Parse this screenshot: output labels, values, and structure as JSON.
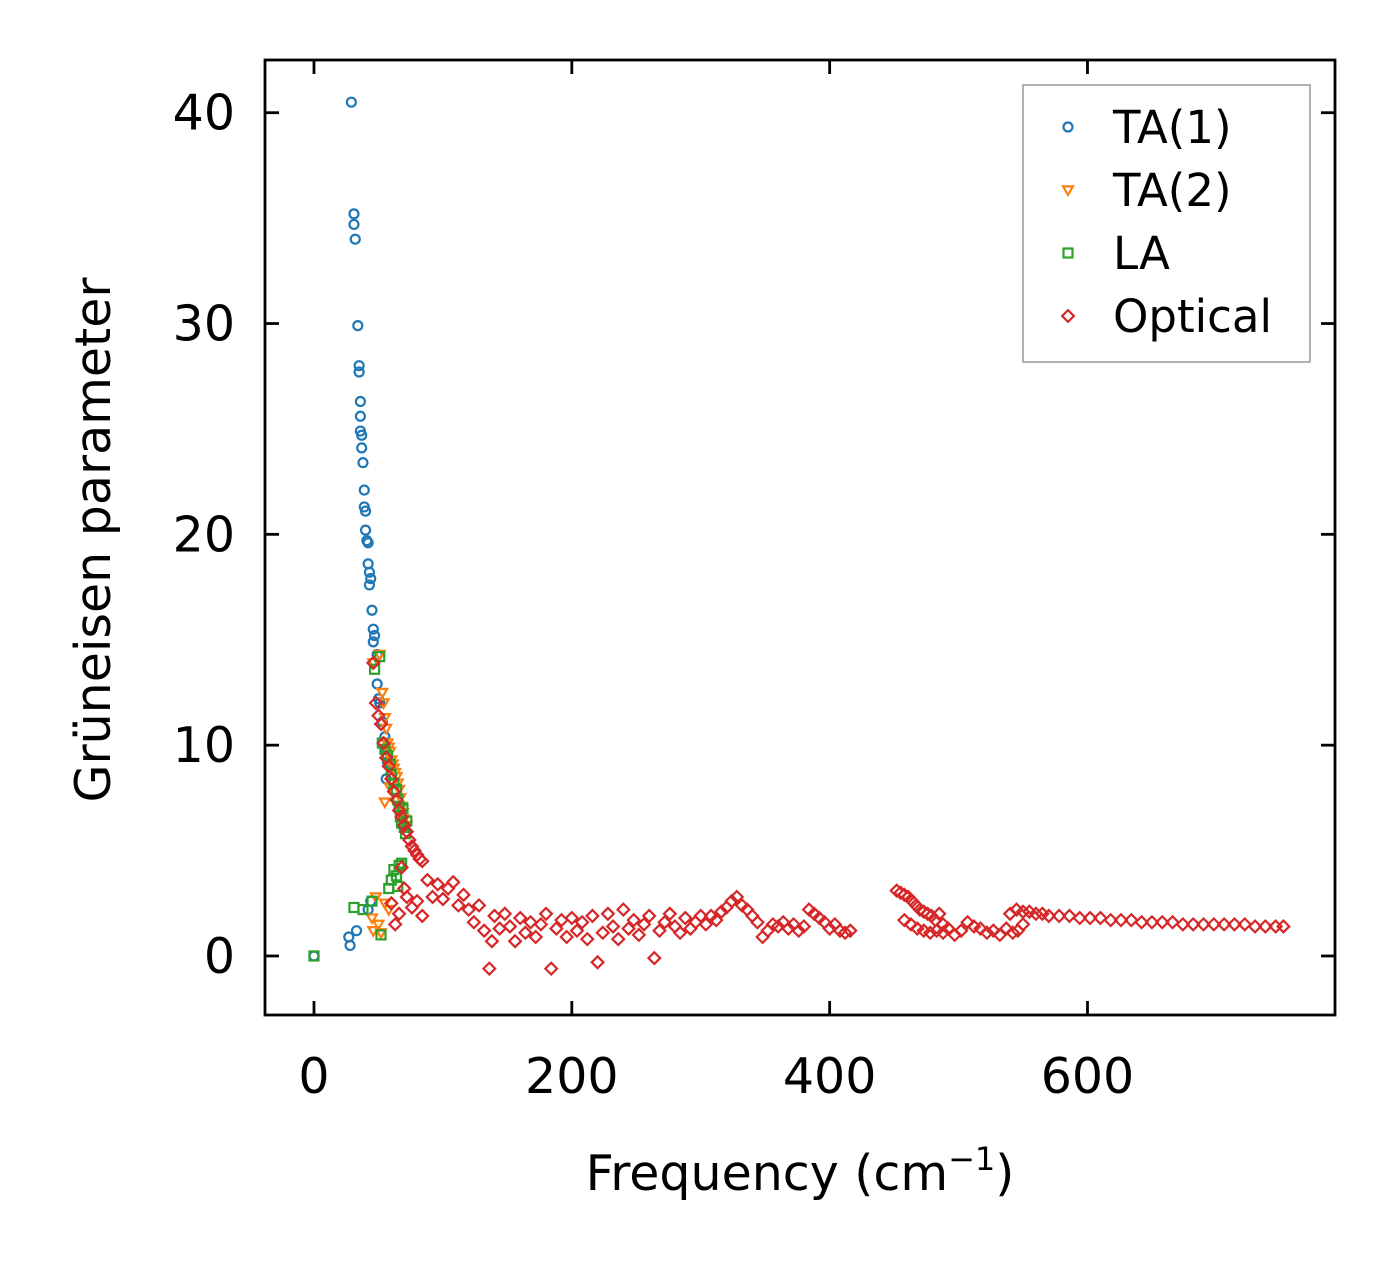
{
  "chart_data": {
    "type": "scatter",
    "title": "",
    "xlabel": "Frequency (cm",
    "xlabel_sup": "−1",
    "xlabel_end": ")",
    "ylabel": "Grüneisen parameter",
    "xlim": [
      -38,
      792
    ],
    "ylim": [
      -2.8,
      42.5
    ],
    "xticks": [
      0,
      200,
      400,
      600
    ],
    "xtick_labels": [
      "0",
      "200",
      "400",
      "600"
    ],
    "yticks": [
      0,
      10,
      20,
      30,
      40
    ],
    "ytick_labels": [
      "0",
      "10",
      "20",
      "30",
      "40"
    ],
    "legend_position": "top-right",
    "series": [
      {
        "name": "TA(1)",
        "marker": "circle",
        "color": "#1f77b4",
        "points": [
          [
            0,
            0
          ],
          [
            27,
            0.9
          ],
          [
            28,
            0.5
          ],
          [
            33,
            1.2
          ],
          [
            42,
            2.2
          ],
          [
            44,
            2.6
          ],
          [
            29,
            40.5
          ],
          [
            31,
            35.2
          ],
          [
            31,
            34.7
          ],
          [
            32,
            34
          ],
          [
            34,
            29.9
          ],
          [
            35,
            28
          ],
          [
            35,
            27.7
          ],
          [
            36,
            26.3
          ],
          [
            36,
            25.6
          ],
          [
            36,
            24.9
          ],
          [
            37,
            24.7
          ],
          [
            37,
            24.1
          ],
          [
            38,
            23.4
          ],
          [
            39,
            22.1
          ],
          [
            39,
            21.3
          ],
          [
            40,
            21.1
          ],
          [
            40,
            20.2
          ],
          [
            41,
            19.7
          ],
          [
            42,
            19.6
          ],
          [
            42,
            18.6
          ],
          [
            43,
            18.2
          ],
          [
            44,
            17.9
          ],
          [
            43,
            17.6
          ],
          [
            45,
            16.4
          ],
          [
            46,
            15.5
          ],
          [
            47,
            15.2
          ],
          [
            46,
            14.9
          ],
          [
            49,
            14.3
          ],
          [
            49,
            12.9
          ],
          [
            50,
            12.2
          ],
          [
            51,
            12
          ],
          [
            53,
            11.1
          ],
          [
            55,
            10.4
          ],
          [
            56,
            9.8
          ],
          [
            57,
            9.2
          ],
          [
            59,
            9
          ],
          [
            56,
            8.4
          ]
        ]
      },
      {
        "name": "TA(2)",
        "marker": "triangle-down",
        "color": "#ff7f0e",
        "points": [
          [
            45,
            1.8
          ],
          [
            48,
            2.8
          ],
          [
            46,
            1.2
          ],
          [
            50,
            1.5
          ],
          [
            52,
            1.1
          ],
          [
            55,
            2.5
          ],
          [
            58,
            2.2
          ],
          [
            46,
            13.9
          ],
          [
            51,
            14.3
          ],
          [
            53,
            12.5
          ],
          [
            54,
            12
          ],
          [
            55,
            11.3
          ],
          [
            56,
            10.8
          ],
          [
            57,
            10.1
          ],
          [
            58,
            9.9
          ],
          [
            59,
            9.7
          ],
          [
            60,
            9.3
          ],
          [
            61,
            9.1
          ],
          [
            62,
            8.9
          ],
          [
            63,
            8.7
          ],
          [
            64,
            8.5
          ],
          [
            65,
            8.2
          ],
          [
            66,
            7.9
          ],
          [
            67,
            7.5
          ],
          [
            68,
            7.1
          ],
          [
            69,
            6.8
          ],
          [
            70,
            6.5
          ],
          [
            72,
            6.2
          ],
          [
            55,
            7.3
          ],
          [
            59,
            8
          ]
        ]
      },
      {
        "name": "LA",
        "marker": "square",
        "color": "#2ca02c",
        "points": [
          [
            0,
            0
          ],
          [
            31,
            2.3
          ],
          [
            38,
            2.2
          ],
          [
            45,
            2.6
          ],
          [
            52,
            1
          ],
          [
            58,
            3.2
          ],
          [
            60,
            3.6
          ],
          [
            62,
            4.1
          ],
          [
            64,
            3.8
          ],
          [
            66,
            4.3
          ],
          [
            68,
            4.4
          ],
          [
            65,
            3.3
          ],
          [
            47,
            13.6
          ],
          [
            51,
            14.2
          ],
          [
            53,
            10.1
          ],
          [
            55,
            9.8
          ],
          [
            57,
            9.5
          ],
          [
            59,
            9.1
          ],
          [
            60,
            8.6
          ],
          [
            62,
            8.2
          ],
          [
            64,
            7.9
          ],
          [
            65,
            7.4
          ],
          [
            66,
            7.1
          ],
          [
            67,
            6.6
          ],
          [
            68,
            6.3
          ],
          [
            70,
            6.1
          ],
          [
            71,
            5.8
          ],
          [
            72,
            6.4
          ],
          [
            69,
            7
          ]
        ]
      },
      {
        "name": "Optical",
        "marker": "diamond",
        "color": "#d62728",
        "points": [
          [
            46,
            13.9
          ],
          [
            48,
            12
          ],
          [
            50,
            11.4
          ],
          [
            52,
            11
          ],
          [
            54,
            10.1
          ],
          [
            56,
            9.4
          ],
          [
            58,
            9
          ],
          [
            60,
            8.4
          ],
          [
            62,
            7.8
          ],
          [
            64,
            7.4
          ],
          [
            66,
            6.9
          ],
          [
            68,
            6.6
          ],
          [
            70,
            6.2
          ],
          [
            72,
            5.9
          ],
          [
            74,
            5.5
          ],
          [
            76,
            5.2
          ],
          [
            78,
            5
          ],
          [
            80,
            4.8
          ],
          [
            82,
            4.6
          ],
          [
            84,
            4.5
          ],
          [
            60,
            2.5
          ],
          [
            63,
            1.5
          ],
          [
            66,
            2
          ],
          [
            68,
            4.2
          ],
          [
            70,
            3.2
          ],
          [
            72,
            2.8
          ],
          [
            76,
            2.3
          ],
          [
            80,
            2.6
          ],
          [
            84,
            1.9
          ],
          [
            88,
            3.6
          ],
          [
            92,
            2.8
          ],
          [
            96,
            3.4
          ],
          [
            100,
            2.7
          ],
          [
            104,
            3.2
          ],
          [
            108,
            3.5
          ],
          [
            112,
            2.4
          ],
          [
            116,
            2.9
          ],
          [
            120,
            2.2
          ],
          [
            124,
            1.6
          ],
          [
            128,
            2.4
          ],
          [
            132,
            1.2
          ],
          [
            136,
            -0.6
          ],
          [
            138,
            0.7
          ],
          [
            140,
            1.9
          ],
          [
            144,
            1.3
          ],
          [
            148,
            2
          ],
          [
            152,
            1.4
          ],
          [
            156,
            0.7
          ],
          [
            160,
            1.8
          ],
          [
            164,
            1.1
          ],
          [
            168,
            1.6
          ],
          [
            172,
            0.9
          ],
          [
            176,
            1.5
          ],
          [
            180,
            2
          ],
          [
            184,
            -0.6
          ],
          [
            188,
            1.3
          ],
          [
            192,
            1.7
          ],
          [
            196,
            0.9
          ],
          [
            200,
            1.8
          ],
          [
            204,
            1.2
          ],
          [
            208,
            1.6
          ],
          [
            212,
            0.8
          ],
          [
            216,
            1.9
          ],
          [
            220,
            -0.3
          ],
          [
            224,
            1.1
          ],
          [
            228,
            2
          ],
          [
            232,
            1.4
          ],
          [
            236,
            0.8
          ],
          [
            240,
            2.2
          ],
          [
            244,
            1.3
          ],
          [
            248,
            1.7
          ],
          [
            252,
            1
          ],
          [
            256,
            1.5
          ],
          [
            260,
            1.9
          ],
          [
            264,
            -0.1
          ],
          [
            268,
            1.2
          ],
          [
            272,
            1.6
          ],
          [
            276,
            2
          ],
          [
            280,
            1.4
          ],
          [
            284,
            1.1
          ],
          [
            288,
            1.8
          ],
          [
            292,
            1.3
          ],
          [
            296,
            1.6
          ],
          [
            300,
            1.9
          ],
          [
            304,
            1.5
          ],
          [
            308,
            1.9
          ],
          [
            312,
            1.7
          ],
          [
            316,
            2.1
          ],
          [
            320,
            2.3
          ],
          [
            324,
            2.6
          ],
          [
            328,
            2.8
          ],
          [
            332,
            2.4
          ],
          [
            336,
            2.2
          ],
          [
            340,
            1.9
          ],
          [
            344,
            1.6
          ],
          [
            348,
            0.9
          ],
          [
            352,
            1.2
          ],
          [
            356,
            1.5
          ],
          [
            360,
            1.4
          ],
          [
            364,
            1.6
          ],
          [
            368,
            1.3
          ],
          [
            372,
            1.5
          ],
          [
            376,
            1.2
          ],
          [
            380,
            1.4
          ],
          [
            384,
            2.2
          ],
          [
            388,
            2
          ],
          [
            392,
            1.8
          ],
          [
            396,
            1.6
          ],
          [
            400,
            1.3
          ],
          [
            404,
            1.5
          ],
          [
            408,
            1.2
          ],
          [
            412,
            1.1
          ],
          [
            416,
            1.2
          ],
          [
            452,
            3.1
          ],
          [
            455,
            3
          ],
          [
            458,
            2.9
          ],
          [
            461,
            2.8
          ],
          [
            464,
            2.6
          ],
          [
            467,
            2.4
          ],
          [
            470,
            2.2
          ],
          [
            473,
            2.1
          ],
          [
            476,
            2
          ],
          [
            479,
            1.9
          ],
          [
            482,
            1.7
          ],
          [
            485,
            2
          ],
          [
            488,
            1.5
          ],
          [
            458,
            1.7
          ],
          [
            463,
            1.5
          ],
          [
            468,
            1.3
          ],
          [
            473,
            1.2
          ],
          [
            478,
            1.1
          ],
          [
            483,
            1.2
          ],
          [
            488,
            1.1
          ],
          [
            492,
            1.3
          ],
          [
            497,
            1
          ],
          [
            502,
            1.2
          ],
          [
            507,
            1.6
          ],
          [
            512,
            1.4
          ],
          [
            517,
            1.3
          ],
          [
            522,
            1.1
          ],
          [
            527,
            1.2
          ],
          [
            532,
            1
          ],
          [
            537,
            1.3
          ],
          [
            542,
            1.1
          ],
          [
            546,
            1.2
          ],
          [
            550,
            1.5
          ],
          [
            540,
            2
          ],
          [
            545,
            2.2
          ],
          [
            550,
            2.1
          ],
          [
            555,
            2.1
          ],
          [
            560,
            2
          ],
          [
            565,
            2
          ],
          [
            570,
            1.9
          ],
          [
            578,
            1.9
          ],
          [
            586,
            1.9
          ],
          [
            594,
            1.8
          ],
          [
            602,
            1.8
          ],
          [
            610,
            1.8
          ],
          [
            618,
            1.7
          ],
          [
            626,
            1.7
          ],
          [
            634,
            1.7
          ],
          [
            642,
            1.6
          ],
          [
            650,
            1.6
          ],
          [
            658,
            1.6
          ],
          [
            666,
            1.6
          ],
          [
            674,
            1.5
          ],
          [
            682,
            1.5
          ],
          [
            690,
            1.5
          ],
          [
            698,
            1.5
          ],
          [
            706,
            1.5
          ],
          [
            714,
            1.5
          ],
          [
            722,
            1.5
          ],
          [
            730,
            1.4
          ],
          [
            738,
            1.4
          ],
          [
            746,
            1.4
          ],
          [
            752,
            1.4
          ]
        ]
      }
    ]
  }
}
